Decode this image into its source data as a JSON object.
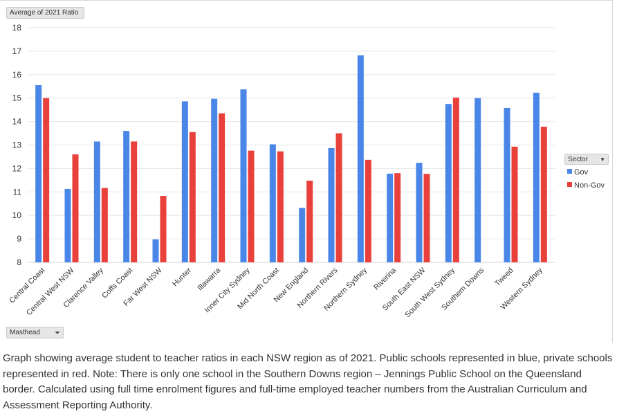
{
  "pivot": {
    "value_field": "Average of 2021 Ratio",
    "filter_field": "Masthead",
    "legend_field": "Sector"
  },
  "chart_data": {
    "type": "bar",
    "title": "",
    "xlabel": "",
    "ylabel": "",
    "ylim": [
      8,
      18
    ],
    "yticks": [
      8,
      9,
      10,
      11,
      12,
      13,
      14,
      15,
      16,
      17,
      18
    ],
    "grid": true,
    "legend_position": "right",
    "categories": [
      "Central Coast",
      "Central West NSW",
      "Clarence Valley",
      "Coffs Coast",
      "Far West NSW",
      "Hunter",
      "Illawarra",
      "Inner City Sydney",
      "Mid North Coast",
      "New England",
      "Northern Rivers",
      "Northern Sydney",
      "Riverina",
      "South East NSW",
      "South West Sydney",
      "Southern Downs",
      "Tweed",
      "Western Sydney"
    ],
    "series": [
      {
        "name": "Gov",
        "color": "#4a86e8",
        "values": [
          15.55,
          11.13,
          13.15,
          13.6,
          8.98,
          14.86,
          14.97,
          15.37,
          13.03,
          10.32,
          12.87,
          16.82,
          11.78,
          12.24,
          14.75,
          15.0,
          14.58,
          15.23
        ]
      },
      {
        "name": "Non-Gov",
        "color": "#e8403a",
        "values": [
          15.0,
          12.6,
          11.17,
          13.15,
          10.83,
          13.55,
          14.35,
          12.76,
          12.73,
          11.48,
          13.5,
          12.37,
          11.8,
          11.77,
          15.02,
          null,
          12.93,
          13.78
        ]
      }
    ]
  },
  "caption": "Graph showing average student to teacher ratios in each NSW region as of 2021. Public schools represented in blue, private schools represented in red. Note: There is only one school in the Southern Downs region – Jennings Public School on the Queensland border. Calculated using full time enrolment figures and full-time employed teacher numbers from the Australian Curriculum and Assessment Reporting Authority."
}
